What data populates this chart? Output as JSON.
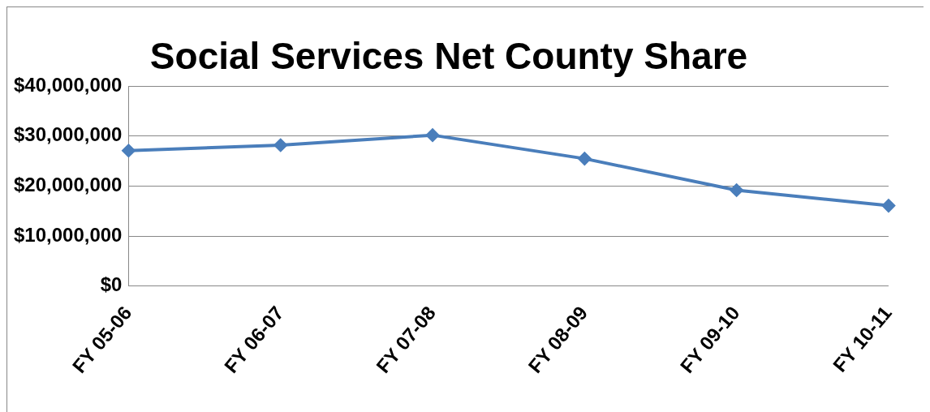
{
  "chart_data": {
    "type": "line",
    "title": "Social Services Net County Share",
    "categories": [
      "FY 05-06",
      "FY 06-07",
      "FY 07-08",
      "FY 08-09",
      "FY 09-10",
      "FY 10-11"
    ],
    "series": [
      {
        "color": "#4a7ebb",
        "values": [
          27100000,
          28200000,
          30200000,
          25500000,
          19200000,
          16100000
        ]
      }
    ],
    "ylim": [
      0,
      40000000
    ],
    "yticks": [
      {
        "value": 0,
        "label": "$0"
      },
      {
        "value": 10000000,
        "label": "$10,000,000"
      },
      {
        "value": 20000000,
        "label": "$20,000,000"
      },
      {
        "value": 30000000,
        "label": "$30,000,000"
      },
      {
        "value": 40000000,
        "label": "$40,000,000"
      }
    ],
    "grid": "y",
    "legend": false,
    "marker": "diamond",
    "line_style": "solid"
  }
}
